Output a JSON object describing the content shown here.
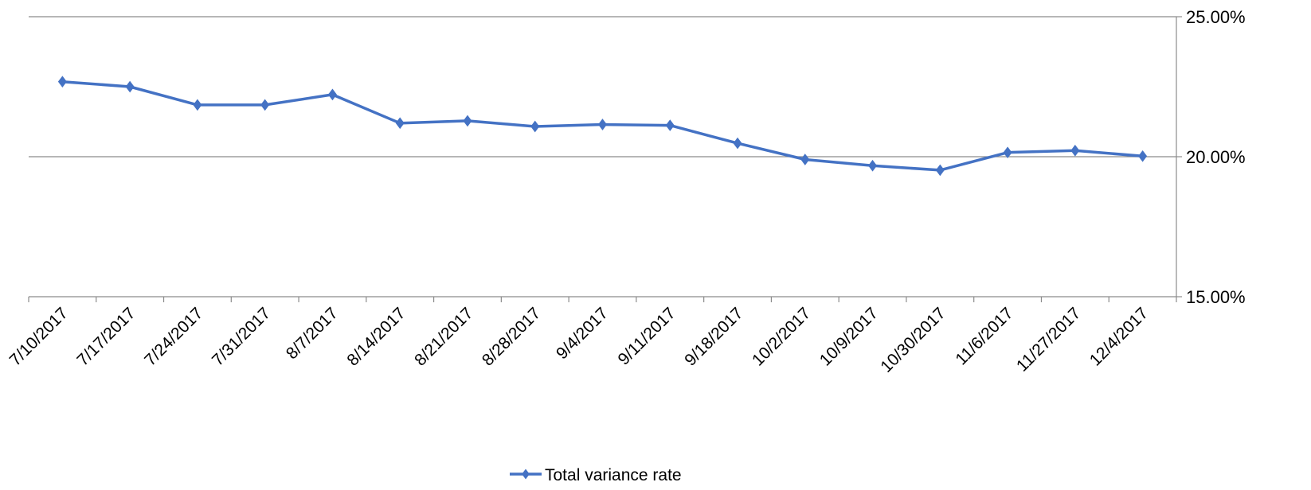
{
  "chart_data": {
    "type": "line",
    "categories": [
      "7/10/2017",
      "7/17/2017",
      "7/24/2017",
      "7/31/2017",
      "8/7/2017",
      "8/14/2017",
      "8/21/2017",
      "8/28/2017",
      "9/4/2017",
      "9/11/2017",
      "9/18/2017",
      "10/2/2017",
      "10/9/2017",
      "10/30/2017",
      "11/6/2017",
      "11/27/2017",
      "12/4/2017"
    ],
    "series": [
      {
        "name": "Total variance rate",
        "values": [
          22.68,
          22.5,
          21.85,
          21.85,
          22.22,
          21.2,
          21.28,
          21.08,
          21.15,
          21.12,
          20.48,
          19.9,
          19.68,
          19.52,
          20.15,
          20.22,
          20.02
        ],
        "color": "#4472C4",
        "marker": "diamond"
      }
    ],
    "y_ticks": [
      "25.00%",
      "20.00%",
      "15.00%"
    ],
    "y_tick_values": [
      25,
      20,
      15
    ],
    "ylim": [
      15,
      25
    ],
    "y_axis_side": "right",
    "grid": true,
    "legend_position": "bottom",
    "title": "",
    "xlabel": "",
    "ylabel": ""
  }
}
